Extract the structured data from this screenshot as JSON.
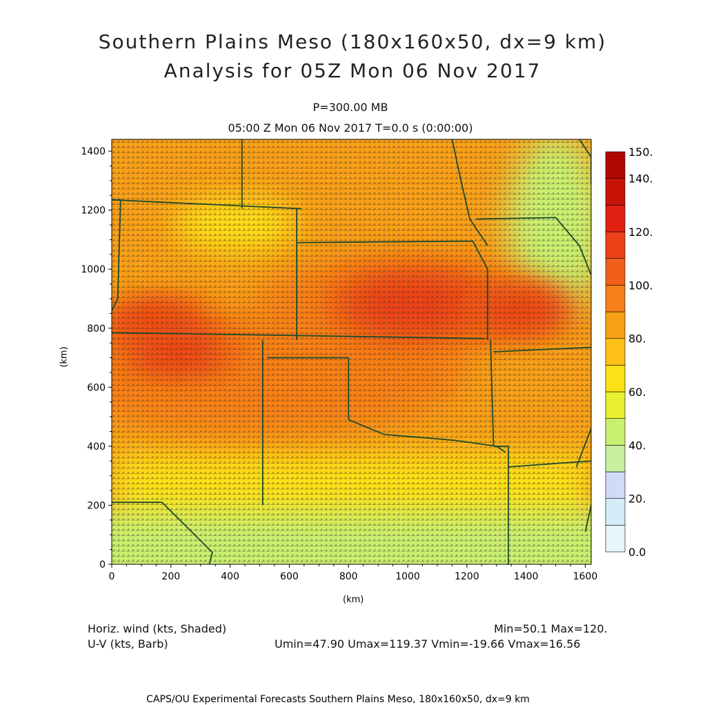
{
  "title": {
    "line1": "Southern Plains Meso (180x160x50, dx=9 km)",
    "line2": "Analysis for 05Z Mon 06 Nov 2017"
  },
  "subtitle": {
    "level": "P=300.00 MB",
    "time": "05:00 Z Mon 06 Nov 2017    T=0.0 s (0:00:00)"
  },
  "info": {
    "field1": "Horiz. wind (kts, Shaded)",
    "field2": "U-V (kts, Barb)",
    "minmax": "Min=50.1 Max=120.",
    "components": "Umin=47.90 Umax=119.37 Vmin=-19.66 Vmax=16.56"
  },
  "footer": "CAPS/OU Experimental Forecasts  Southern Plains Meso, 180x160x50, dx=9 km",
  "chart_data": {
    "type": "heatmap",
    "xlabel": "(km)",
    "ylabel": "(km)",
    "xlim": [
      0,
      1620
    ],
    "ylim": [
      0,
      1440
    ],
    "x_ticks": [
      "0",
      "200",
      "400",
      "600",
      "800",
      "1000",
      "1200",
      "1400",
      "1600"
    ],
    "y_ticks": [
      "0",
      "200",
      "400",
      "600",
      "800",
      "1000",
      "1200",
      "1400"
    ],
    "colorbar": {
      "levels": [
        0,
        10,
        20,
        30,
        40,
        50,
        60,
        70,
        80,
        90,
        100,
        110,
        120,
        130,
        140,
        150
      ],
      "labels": [
        "0.0",
        "20.",
        "40.",
        "60.",
        "80.",
        "100.",
        "120.",
        "140.",
        "150."
      ],
      "colors": [
        "#e8f6fc",
        "#d2ecf8",
        "#d0dcf6",
        "#c8eea0",
        "#c8f070",
        "#e8f030",
        "#fce018",
        "#fcc018",
        "#f8a018",
        "#f88018",
        "#f06018",
        "#ec4018",
        "#e02010",
        "#c81408",
        "#b00800"
      ]
    },
    "wind_speed_maxima_kts": [
      {
        "x": 150,
        "y": 820,
        "value": 115
      },
      {
        "x": 220,
        "y": 720,
        "value": 112
      },
      {
        "x": 1020,
        "y": 880,
        "value": 120
      },
      {
        "x": 1380,
        "y": 860,
        "value": 110
      }
    ],
    "min": 50.1,
    "max": 120
  }
}
